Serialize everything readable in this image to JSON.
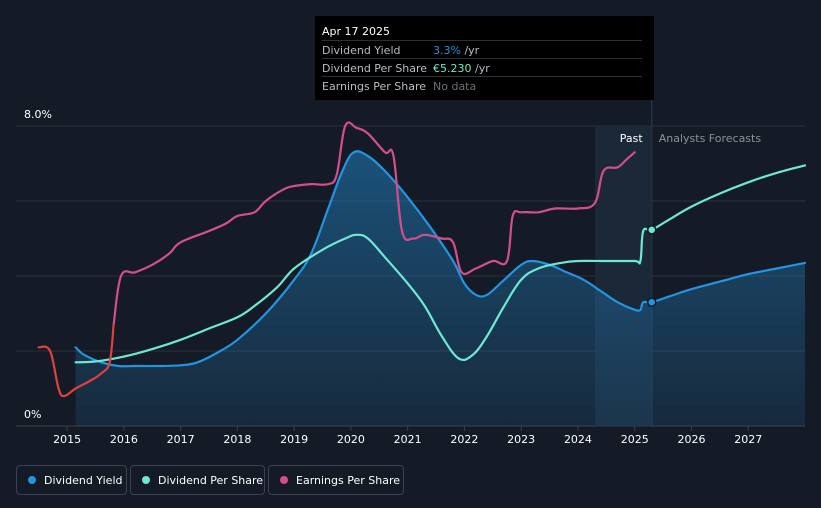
{
  "tooltip": {
    "date": "Apr 17 2025",
    "rows": [
      {
        "label": "Dividend Yield",
        "value": "3.3%",
        "suffix": " /yr",
        "color": "#2394df"
      },
      {
        "label": "Dividend Per Share",
        "value": "€5.230",
        "suffix": " /yr",
        "color": "#6ee8d3"
      },
      {
        "label": "Earnings Per Share",
        "value": "No data",
        "suffix": "",
        "color": "#6b7079"
      }
    ]
  },
  "legend": [
    {
      "label": "Dividend Yield",
      "color": "#2394df"
    },
    {
      "label": "Dividend Per Share",
      "color": "#6ee8d3"
    },
    {
      "label": "Earnings Per Share",
      "color": "#d34f8c"
    }
  ],
  "chart_data": {
    "type": "line",
    "y_ticks": [
      "8.0%",
      "0%"
    ],
    "ylim": [
      0,
      8
    ],
    "x_ticks": [
      "2015",
      "2016",
      "2017",
      "2018",
      "2019",
      "2020",
      "2021",
      "2022",
      "2023",
      "2024",
      "2025",
      "2026",
      "2027"
    ],
    "xlim": [
      2014.1,
      2028.0
    ],
    "past_label": "Past",
    "forecast_label": "Analysts Forecasts",
    "past_region": [
      2024.3,
      2025.3
    ],
    "grid": true,
    "series": [
      {
        "name": "Dividend Yield",
        "color": "#2394df",
        "area": true,
        "points": [
          [
            2015.15,
            2.1
          ],
          [
            2015.3,
            1.9
          ],
          [
            2015.6,
            1.7
          ],
          [
            2015.9,
            1.6
          ],
          [
            2016.2,
            1.6
          ],
          [
            2016.6,
            1.6
          ],
          [
            2017.0,
            1.62
          ],
          [
            2017.3,
            1.7
          ],
          [
            2017.7,
            2.0
          ],
          [
            2018.0,
            2.3
          ],
          [
            2018.5,
            3.0
          ],
          [
            2019.0,
            3.9
          ],
          [
            2019.3,
            4.6
          ],
          [
            2019.6,
            5.8
          ],
          [
            2019.85,
            6.8
          ],
          [
            2020.05,
            7.3
          ],
          [
            2020.3,
            7.2
          ],
          [
            2020.6,
            6.8
          ],
          [
            2021.0,
            6.1
          ],
          [
            2021.4,
            5.3
          ],
          [
            2021.8,
            4.4
          ],
          [
            2022.0,
            3.8
          ],
          [
            2022.2,
            3.5
          ],
          [
            2022.4,
            3.5
          ],
          [
            2022.7,
            3.9
          ],
          [
            2023.0,
            4.3
          ],
          [
            2023.2,
            4.4
          ],
          [
            2023.5,
            4.3
          ],
          [
            2023.8,
            4.1
          ],
          [
            2024.1,
            3.9
          ],
          [
            2024.4,
            3.6
          ],
          [
            2024.7,
            3.3
          ],
          [
            2025.0,
            3.1
          ],
          [
            2025.1,
            3.1
          ],
          [
            2025.15,
            3.3
          ],
          [
            2025.3,
            3.3
          ],
          [
            2025.6,
            3.45
          ],
          [
            2026.0,
            3.65
          ],
          [
            2026.5,
            3.85
          ],
          [
            2027.0,
            4.05
          ],
          [
            2027.5,
            4.2
          ],
          [
            2028.0,
            4.35
          ]
        ],
        "marker": [
          2025.3,
          3.3
        ]
      },
      {
        "name": "Dividend Per Share",
        "color": "#6ee8d3",
        "area": false,
        "points": [
          [
            2015.15,
            1.7
          ],
          [
            2015.5,
            1.72
          ],
          [
            2016.0,
            1.85
          ],
          [
            2016.5,
            2.05
          ],
          [
            2017.0,
            2.3
          ],
          [
            2017.5,
            2.6
          ],
          [
            2018.0,
            2.9
          ],
          [
            2018.3,
            3.2
          ],
          [
            2018.7,
            3.7
          ],
          [
            2019.0,
            4.2
          ],
          [
            2019.5,
            4.7
          ],
          [
            2019.9,
            5.0
          ],
          [
            2020.1,
            5.1
          ],
          [
            2020.3,
            5.0
          ],
          [
            2020.6,
            4.5
          ],
          [
            2021.0,
            3.8
          ],
          [
            2021.3,
            3.2
          ],
          [
            2021.6,
            2.4
          ],
          [
            2021.9,
            1.8
          ],
          [
            2022.15,
            1.9
          ],
          [
            2022.4,
            2.4
          ],
          [
            2022.7,
            3.2
          ],
          [
            2023.0,
            3.9
          ],
          [
            2023.3,
            4.2
          ],
          [
            2023.7,
            4.35
          ],
          [
            2024.0,
            4.4
          ],
          [
            2024.5,
            4.4
          ],
          [
            2025.0,
            4.4
          ],
          [
            2025.1,
            4.4
          ],
          [
            2025.15,
            5.2
          ],
          [
            2025.3,
            5.23
          ],
          [
            2025.6,
            5.5
          ],
          [
            2026.0,
            5.85
          ],
          [
            2026.5,
            6.2
          ],
          [
            2027.0,
            6.5
          ],
          [
            2027.5,
            6.75
          ],
          [
            2028.0,
            6.95
          ]
        ],
        "marker": [
          2025.3,
          5.23
        ]
      },
      {
        "name": "Earnings Per Share",
        "color": "#d34f8c",
        "area": false,
        "points": [
          [
            2015.82,
            2.7
          ],
          [
            2015.95,
            4.0
          ],
          [
            2016.2,
            4.1
          ],
          [
            2016.5,
            4.3
          ],
          [
            2016.8,
            4.6
          ],
          [
            2017.0,
            4.9
          ],
          [
            2017.5,
            5.2
          ],
          [
            2017.8,
            5.4
          ],
          [
            2018.0,
            5.6
          ],
          [
            2018.3,
            5.7
          ],
          [
            2018.5,
            6.0
          ],
          [
            2018.8,
            6.3
          ],
          [
            2019.0,
            6.4
          ],
          [
            2019.3,
            6.45
          ],
          [
            2019.6,
            6.45
          ],
          [
            2019.75,
            6.7
          ],
          [
            2019.9,
            8.0
          ],
          [
            2020.1,
            7.95
          ],
          [
            2020.3,
            7.8
          ],
          [
            2020.6,
            7.3
          ],
          [
            2020.75,
            7.2
          ],
          [
            2020.9,
            5.2
          ],
          [
            2021.1,
            5.0
          ],
          [
            2021.3,
            5.1
          ],
          [
            2021.6,
            5.0
          ],
          [
            2021.8,
            4.9
          ],
          [
            2021.95,
            4.1
          ],
          [
            2022.2,
            4.2
          ],
          [
            2022.5,
            4.4
          ],
          [
            2022.75,
            4.4
          ],
          [
            2022.85,
            5.6
          ],
          [
            2023.0,
            5.7
          ],
          [
            2023.3,
            5.7
          ],
          [
            2023.6,
            5.8
          ],
          [
            2024.0,
            5.8
          ],
          [
            2024.3,
            5.95
          ],
          [
            2024.45,
            6.8
          ],
          [
            2024.7,
            6.9
          ],
          [
            2024.85,
            7.1
          ],
          [
            2025.0,
            7.3
          ]
        ],
        "marker": null
      },
      {
        "name": "Earnings Per Share",
        "color": "#e0403f",
        "area": false,
        "points": [
          [
            2014.5,
            2.1
          ],
          [
            2014.7,
            2.0
          ],
          [
            2014.85,
            1.0
          ],
          [
            2014.95,
            0.8
          ],
          [
            2015.15,
            1.0
          ],
          [
            2015.4,
            1.2
          ],
          [
            2015.6,
            1.4
          ],
          [
            2015.75,
            1.7
          ],
          [
            2015.82,
            2.7
          ]
        ],
        "marker": null
      }
    ]
  }
}
